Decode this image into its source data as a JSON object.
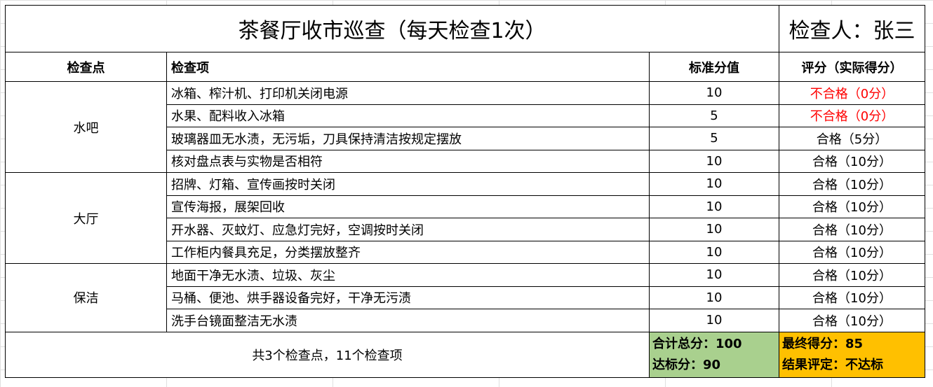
{
  "title": "茶餐厅收市巡查（每天检查1次）",
  "inspector": "检查人：张三",
  "headers": [
    "检查点",
    "检查项",
    "标准分值",
    "评分（实际得分）"
  ],
  "groups": [
    {
      "point": "水吧",
      "items": [
        {
          "item": "冰箱、榨汁机、打印机关闭电源",
          "standard": "10",
          "score": "不合格（0分）",
          "pass": false
        },
        {
          "item": "水果、配料收入冰箱",
          "standard": "5",
          "score": "不合格（0分）",
          "pass": false
        },
        {
          "item": "玻璃器皿无水渍，无污垢，刀具保持清洁按规定摆放",
          "standard": "5",
          "score": "合格（5分）",
          "pass": true
        },
        {
          "item": "核对盘点表与实物是否相符",
          "standard": "10",
          "score": "合格（10分）",
          "pass": true
        }
      ]
    },
    {
      "point": "大厅",
      "items": [
        {
          "item": "招牌、灯箱、宣传画按时关闭",
          "standard": "10",
          "score": "合格（10分）",
          "pass": true
        },
        {
          "item": "宣传海报，展架回收",
          "standard": "10",
          "score": "合格（10分）",
          "pass": true
        },
        {
          "item": "开水器、灭蚊灯、应急灯完好，空调按时关闭",
          "standard": "10",
          "score": "合格（10分）",
          "pass": true
        },
        {
          "item": "工作柜内餐具充足，分类摆放整齐",
          "standard": "10",
          "score": "合格（10分）",
          "pass": true
        }
      ]
    },
    {
      "point": "保洁",
      "items": [
        {
          "item": "地面干净无水渍、垃圾、灰尘",
          "standard": "10",
          "score": "合格（10分）",
          "pass": true
        },
        {
          "item": "马桶、便池、烘手器设备完好，干净无污渍",
          "standard": "10",
          "score": "合格（10分）",
          "pass": true
        },
        {
          "item": "洗手台镜面整洁无水渍",
          "standard": "10",
          "score": "合格（10分）",
          "pass": true
        }
      ]
    }
  ],
  "footer": {
    "summary": "共3个检查点，11个检查项",
    "total": "合计总分：100",
    "passing": "达标分：90",
    "final": "最终得分：85",
    "result": "结果评定：不达标"
  },
  "colors": {
    "fail": "#ff0000",
    "total_bg": "#a9d08e",
    "final_bg": "#ffc000"
  }
}
